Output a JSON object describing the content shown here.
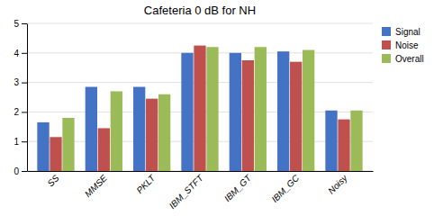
{
  "chart_data": {
    "type": "bar",
    "title": "Cafeteria 0 dB for NH",
    "categories": [
      "SS",
      "MMSE",
      "PKLT",
      "IBM_STFT",
      "IBM_GT",
      "IBM_GC",
      "Noisy"
    ],
    "series": [
      {
        "name": "Signal",
        "color": "#4472C4",
        "values": [
          1.65,
          2.85,
          2.85,
          4.0,
          4.0,
          4.05,
          2.05
        ]
      },
      {
        "name": "Noise",
        "color": "#C0504D",
        "values": [
          1.15,
          1.45,
          2.45,
          4.25,
          3.75,
          3.7,
          1.75
        ]
      },
      {
        "name": "Overall",
        "color": "#9BBB59",
        "values": [
          1.8,
          2.7,
          2.6,
          4.2,
          4.2,
          4.1,
          2.05
        ]
      }
    ],
    "ylim": [
      0,
      5
    ],
    "yticks": [
      0,
      1,
      2,
      3,
      4,
      5
    ],
    "grid": true,
    "legend": "upper right"
  }
}
